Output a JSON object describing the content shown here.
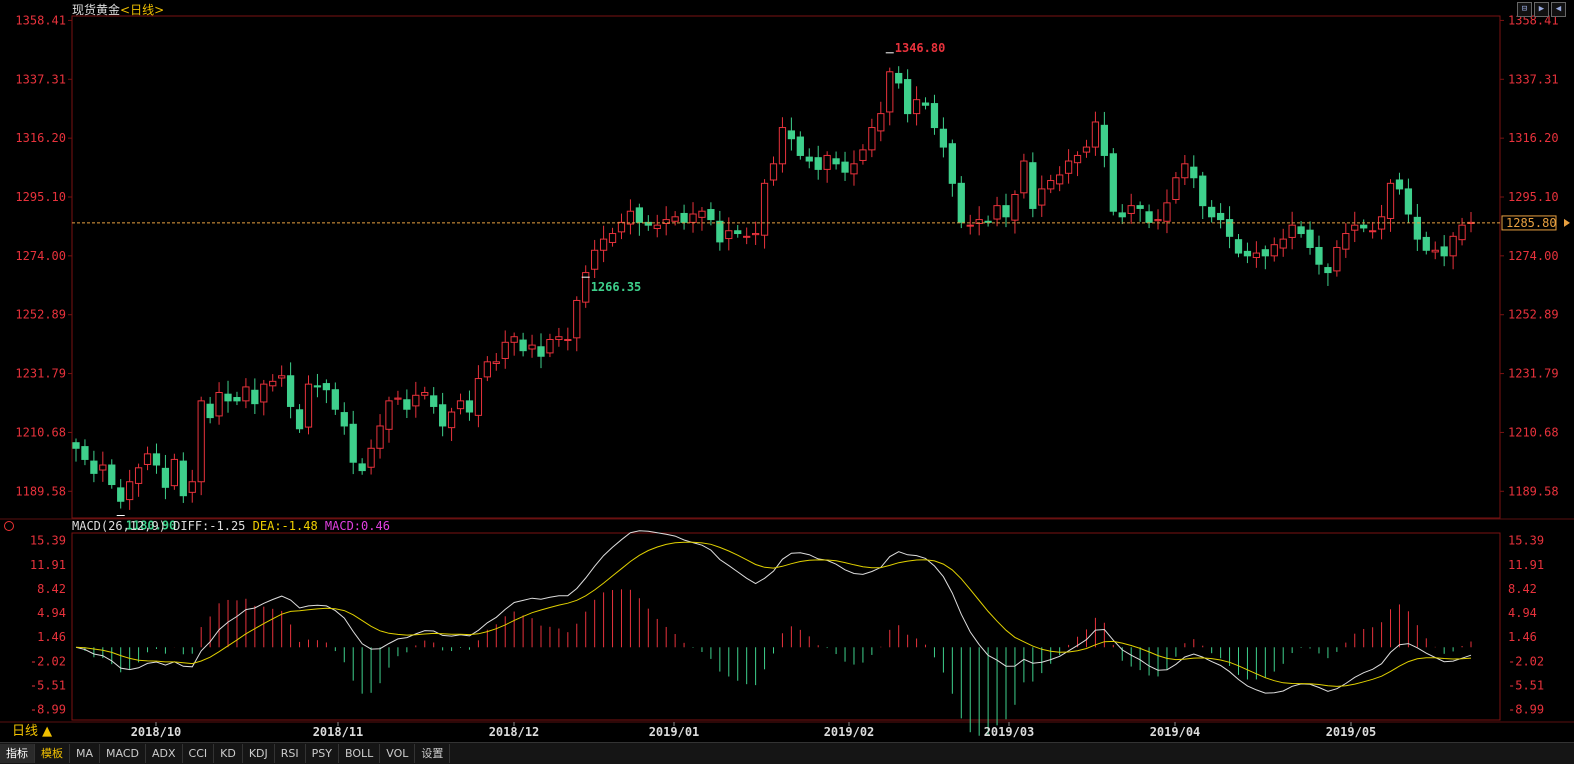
{
  "header": {
    "symbol": "现货黄金",
    "period": "<日线>"
  },
  "window_buttons": [
    "⊟",
    "▶",
    "◀"
  ],
  "price_label": "1285.80",
  "macd_legend": {
    "name": "MACD(26,12,9)",
    "diff": "DIFF:-1.25",
    "dea": "DEA:-1.48",
    "macd": "MACD:0.46"
  },
  "period_tab": "日线 ▲",
  "bottom_tabs": [
    "指标",
    "模板",
    "MA",
    "MACD",
    "ADX",
    "CCI",
    "KD",
    "KDJ",
    "RSI",
    "PSY",
    "BOLL",
    "VOL",
    "设置"
  ],
  "colors": {
    "up": "#e8323c",
    "down": "#3ed08c",
    "axis_label": "#e8323c",
    "diff": "#dddddd",
    "dea": "#e0d000",
    "grid": "#7a1212"
  },
  "chart_data": [
    {
      "type": "candlestick",
      "title": "现货黄金",
      "y_ticks": [
        "1358.41",
        "1337.31",
        "1316.20",
        "1295.10",
        "1274.00",
        "1252.89",
        "1231.79",
        "1210.68",
        "1189.58"
      ],
      "ylim": [
        1180,
        1360
      ],
      "x_labels": [
        "2018/10",
        "2018/11",
        "2018/12",
        "2019/01",
        "2019/02",
        "2019/03",
        "2019/04",
        "2019/05"
      ],
      "current_price": 1285.8,
      "annotations": [
        {
          "text": "1346.80",
          "value": 1346.8,
          "type": "high"
        },
        {
          "text": "1180.90",
          "value": 1180.9,
          "type": "low"
        },
        {
          "text": "1266.35",
          "value": 1266.35,
          "type": "low"
        }
      ],
      "closes": [
        1205,
        1201,
        1196,
        1199,
        1192,
        1186,
        1193,
        1198,
        1203,
        1199,
        1191,
        1201,
        1188,
        1193,
        1222,
        1216,
        1225,
        1222,
        1222,
        1227,
        1221,
        1228,
        1229,
        1231,
        1220,
        1212,
        1228,
        1227,
        1226,
        1219,
        1213,
        1200,
        1197,
        1205,
        1213,
        1222,
        1223,
        1219,
        1224,
        1225,
        1220,
        1213,
        1218,
        1222,
        1218,
        1230,
        1236,
        1236,
        1243,
        1245,
        1240,
        1242,
        1238,
        1244,
        1245,
        1244,
        1258,
        1268,
        1276,
        1280,
        1282,
        1286,
        1290,
        1286,
        1285,
        1285,
        1287,
        1288,
        1286,
        1289,
        1290,
        1287,
        1279,
        1283,
        1282,
        1281,
        1282,
        1300,
        1307,
        1320,
        1316,
        1310,
        1308,
        1305,
        1310,
        1307,
        1304,
        1307,
        1312,
        1320,
        1325,
        1340,
        1336,
        1325,
        1330,
        1328,
        1320,
        1313,
        1300,
        1286,
        1285,
        1287,
        1286,
        1292,
        1288,
        1296,
        1308,
        1291,
        1298,
        1301,
        1303,
        1308,
        1310,
        1313,
        1322,
        1310,
        1290,
        1288,
        1292,
        1291,
        1286,
        1287,
        1293,
        1302,
        1307,
        1302,
        1292,
        1288,
        1287,
        1281,
        1275,
        1274,
        1275,
        1274,
        1278,
        1280,
        1285,
        1282,
        1277,
        1271,
        1268,
        1277,
        1282,
        1285,
        1284,
        1283,
        1288,
        1300,
        1298,
        1289,
        1280,
        1276,
        1276,
        1274,
        1281,
        1285,
        1286
      ],
      "macd": {
        "ylim": [
          -10.5,
          16.5
        ],
        "y_ticks": [
          "15.39",
          "11.91",
          "8.42",
          "4.94",
          "1.46",
          "-2.02",
          "-5.51",
          "-8.99"
        ]
      }
    }
  ]
}
